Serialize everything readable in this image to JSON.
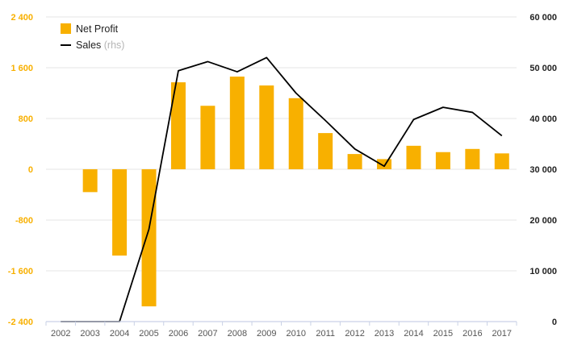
{
  "chart_data": {
    "type": "bar",
    "categories": [
      "2002",
      "2003",
      "2004",
      "2005",
      "2006",
      "2007",
      "2008",
      "2009",
      "2010",
      "2011",
      "2012",
      "2013",
      "2014",
      "2015",
      "2016",
      "2017"
    ],
    "series": [
      {
        "name": "Net Profit",
        "type": "bar",
        "axis": "left",
        "color": "#f8b000",
        "values": [
          0,
          -360,
          -1360,
          -2160,
          1370,
          1000,
          1460,
          1320,
          1120,
          570,
          240,
          160,
          370,
          270,
          320,
          250
        ]
      },
      {
        "name": "Sales",
        "name_suffix": "(rhs)",
        "type": "line",
        "axis": "right",
        "color": "#000000",
        "values": [
          0,
          0,
          0,
          18200,
          49400,
          51200,
          49200,
          52000,
          45000,
          39600,
          34000,
          30600,
          39800,
          42200,
          41200,
          36600
        ]
      }
    ],
    "y_left": {
      "ylim": [
        -2400,
        2400
      ],
      "ticks": [
        2400,
        1600,
        800,
        0,
        -800,
        -1600,
        -2400
      ],
      "tick_labels": [
        "2 400",
        "1 600",
        "800",
        "0",
        "-800",
        "-1 600",
        "-2 400"
      ],
      "label_color": "#f8b000"
    },
    "y_right": {
      "ylim": [
        0,
        60000
      ],
      "ticks": [
        60000,
        50000,
        40000,
        30000,
        20000,
        10000,
        0
      ],
      "tick_labels": [
        "60 000",
        "50 000",
        "40 000",
        "30 000",
        "20 000",
        "10 000",
        "0"
      ]
    },
    "grid": true,
    "legend_position": "top-left"
  }
}
